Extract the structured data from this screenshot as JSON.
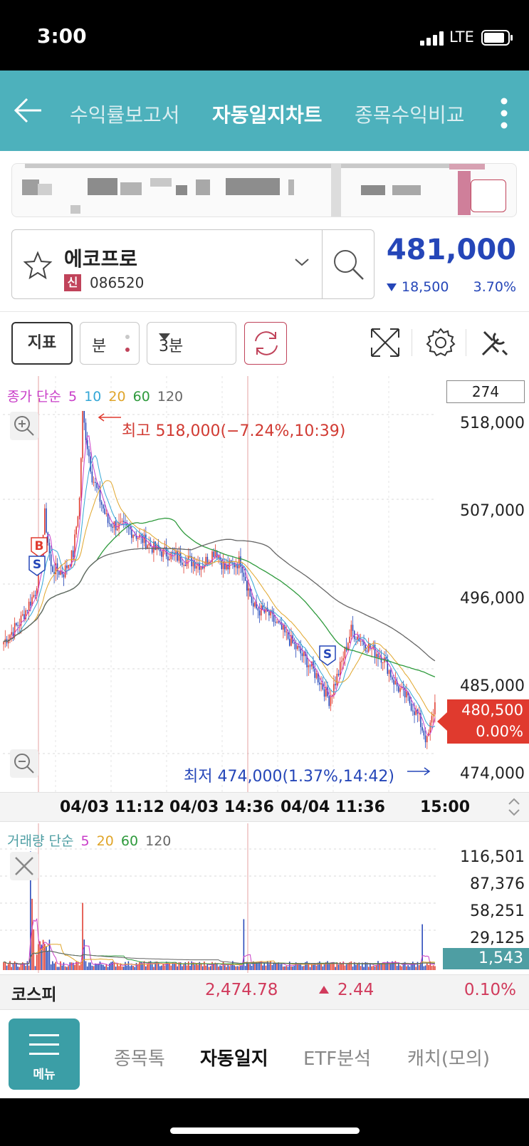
{
  "status_bar": {
    "time": "3:00",
    "network": "LTE"
  },
  "nav": {
    "tabs": [
      {
        "label": "수익률보고서",
        "active": false
      },
      {
        "label": "자동일지차트",
        "active": true
      },
      {
        "label": "종목수익비교",
        "active": false
      }
    ]
  },
  "stock": {
    "name": "에코프로",
    "credit_badge": "신",
    "code": "086520",
    "price": "481,000",
    "change": "18,500",
    "change_pct": "3.70%",
    "change_direction": "down"
  },
  "toolbar": {
    "indicator_label": "지표",
    "minute_label": "분",
    "period_label": "3분",
    "icons": [
      "star-icon",
      "chevron-down-icon",
      "search-icon",
      "refresh-icon",
      "expand-icon",
      "gear-icon",
      "tools-icon"
    ]
  },
  "chart": {
    "legend_prefix": "종가 단순",
    "ma": [
      {
        "label": "5",
        "color": "#c93ec8"
      },
      {
        "label": "10",
        "color": "#35a7d6"
      },
      {
        "label": "20",
        "color": "#e0a52a"
      },
      {
        "label": "60",
        "color": "#2e9a3c"
      },
      {
        "label": "120",
        "color": "#666666"
      }
    ],
    "count": "274",
    "y_ticks": [
      "518,000",
      "507,000",
      "496,000",
      "485,000",
      "474,000"
    ],
    "current_price": "480,500",
    "current_pct": "0.00%",
    "high_label": "최고 518,000(−7.24%,10:39)",
    "low_label": "최저 474,000(1.37%,14:42)",
    "time_labels": [
      "04/03 11:12",
      "04/03 14:36",
      "04/04 11:36",
      "15:00"
    ],
    "markers": [
      "B",
      "S",
      "S"
    ],
    "colors": {
      "up": "#e03a2e",
      "down": "#2546b8"
    }
  },
  "chart_data": {
    "type": "candlestick",
    "interval": "3분",
    "ylim": [
      474000,
      518000
    ],
    "high": 518000,
    "low": 474000,
    "last": 480500,
    "x_ticks": [
      "04/03 11:12",
      "04/03 14:36",
      "04/04 11:36",
      "15:00"
    ],
    "volume": {
      "legend_prefix": "거래량 단순",
      "ma": [
        "5",
        "20",
        "60",
        "120"
      ],
      "y_ticks": [
        "116,501",
        "87,376",
        "58,251",
        "29,125"
      ],
      "last": "1,543"
    }
  },
  "volume": {
    "legend_prefix": "거래량 단순",
    "ma": [
      {
        "label": "5",
        "color": "#c93ec8"
      },
      {
        "label": "20",
        "color": "#e0a52a"
      },
      {
        "label": "60",
        "color": "#2e9a3c"
      },
      {
        "label": "120",
        "color": "#666666"
      }
    ],
    "y_ticks": [
      "116,501",
      "87,376",
      "58,251",
      "29,125"
    ],
    "current": "1,543"
  },
  "kospi": {
    "label": "코스피",
    "value": "2,474.78",
    "change": "2.44",
    "pct": "0.10%"
  },
  "bottom_nav": {
    "menu_label": "메뉴",
    "items": [
      {
        "label": "종목톡",
        "active": false
      },
      {
        "label": "자동일지",
        "active": true
      },
      {
        "label": "ETF분석",
        "active": false
      },
      {
        "label": "캐치(모의)",
        "active": false
      }
    ]
  }
}
